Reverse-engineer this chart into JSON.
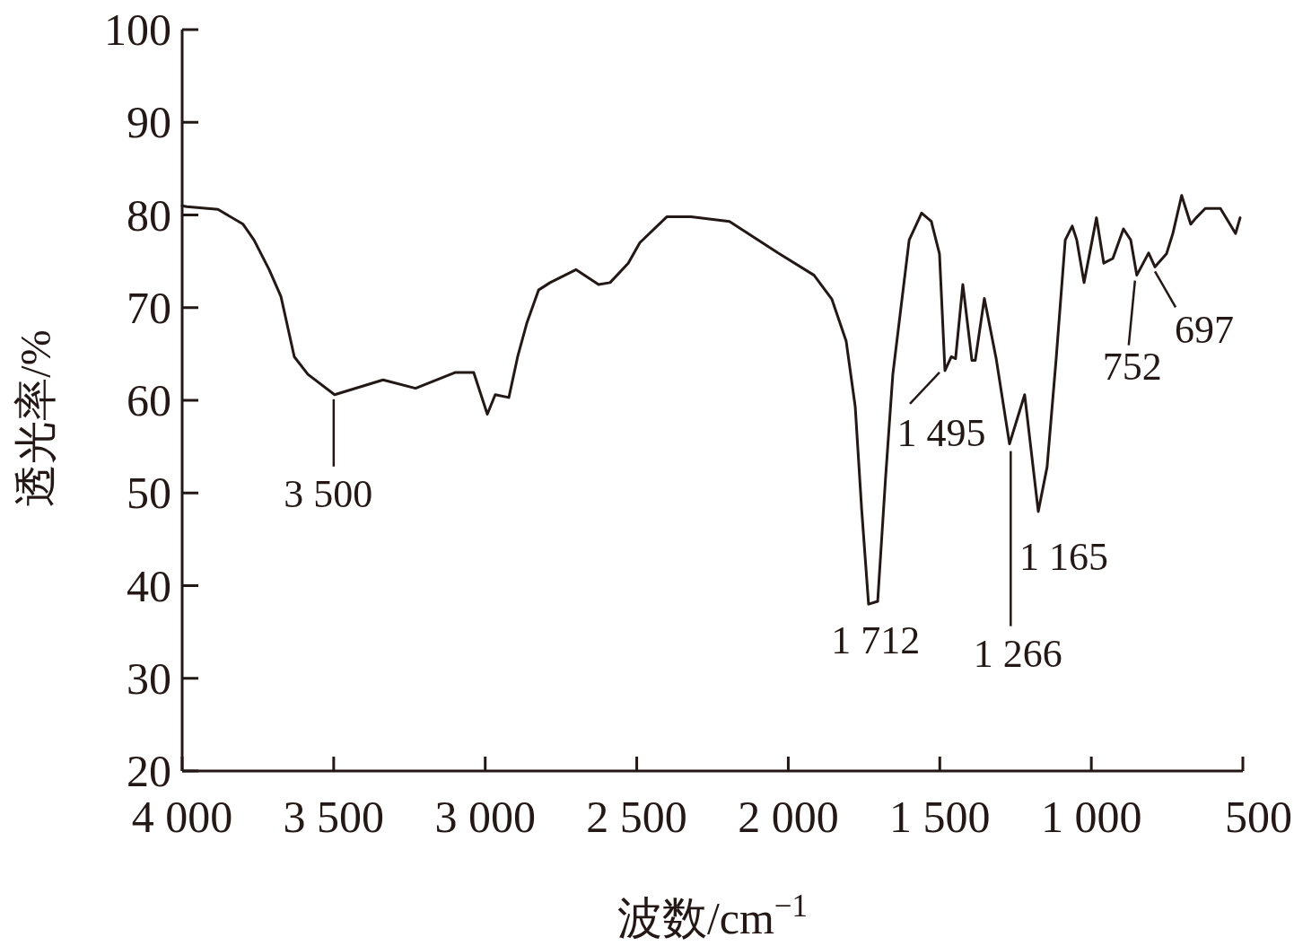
{
  "chart_data": {
    "type": "line",
    "xlabel": "波数/cm$^{−1}$",
    "ylabel": "透光率/%",
    "x": [
      4000,
      3985,
      3882,
      3799,
      3763,
      3713,
      3674,
      3630,
      3585,
      3497,
      3337,
      3230,
      3100,
      3038,
      2993,
      2967,
      2922,
      2893,
      2863,
      2824,
      2786,
      2700,
      2626,
      2588,
      2528,
      2490,
      2401,
      2321,
      2194,
      2034,
      1915,
      1856,
      1809,
      1779,
      1758,
      1735,
      1705,
      1679,
      1655,
      1601,
      1560,
      1528,
      1501,
      1483,
      1462,
      1448,
      1424,
      1394,
      1383,
      1353,
      1314,
      1270,
      1220,
      1175,
      1146,
      1116,
      1086,
      1063,
      1048,
      1024,
      997,
      983,
      959,
      929,
      894,
      870,
      850,
      811,
      790,
      752,
      731,
      702,
      672,
      654,
      624,
      574,
      524,
      509
    ],
    "series": [
      {
        "color": "#231815",
        "values": [
          81.0,
          80.9,
          80.6,
          79.0,
          77.3,
          74.1,
          71.2,
          64.7,
          62.8,
          60.6,
          62.2,
          61.3,
          63.0,
          63.0,
          58.5,
          60.6,
          60.3,
          64.7,
          68.3,
          71.9,
          72.7,
          74.1,
          72.5,
          72.7,
          74.8,
          77.0,
          79.8,
          79.8,
          79.3,
          75.9,
          73.5,
          70.9,
          66.4,
          59.3,
          48.3,
          38.0,
          38.3,
          51.6,
          62.8,
          77.3,
          80.2,
          79.3,
          75.8,
          63.2,
          64.7,
          64.5,
          72.5,
          64.3,
          64.3,
          71.0,
          64.5,
          55.3,
          60.6,
          48.0,
          52.8,
          64.5,
          77.3,
          78.8,
          77.3,
          72.7,
          77.3,
          79.7,
          74.8,
          75.3,
          78.5,
          77.3,
          73.5,
          75.9,
          74.4,
          75.8,
          78.0,
          82.1,
          79.0,
          79.7,
          80.7,
          80.7,
          78.0,
          79.7
        ]
      }
    ],
    "xlim": [
      4000,
      500
    ],
    "xticks": [
      {
        "value": 4000,
        "label": "4 000"
      },
      {
        "value": 3500,
        "label": "3 500"
      },
      {
        "value": 3000,
        "label": "3 000"
      },
      {
        "value": 2500,
        "label": "2 500"
      },
      {
        "value": 2000,
        "label": "2 000"
      },
      {
        "value": 1500,
        "label": "1 500"
      },
      {
        "value": 1000,
        "label": "1 000"
      },
      500
    ],
    "ylim": [
      20,
      100
    ],
    "yticks": [
      20,
      30,
      40,
      50,
      60,
      70,
      80,
      90,
      100
    ],
    "grid": false,
    "marker": "none",
    "line_style": "solid",
    "annotations": [
      {
        "text": "3 500",
        "x": 3500,
        "y": 60.6
      },
      {
        "text": "1 712",
        "x": 1712,
        "y": 38.0
      },
      {
        "text": "1 495",
        "x": 1495,
        "y": 63.5
      },
      {
        "text": "1 266",
        "x": 1266,
        "y": 55.0
      },
      {
        "text": "1 165",
        "x": 1165,
        "y": 48.0
      },
      {
        "text": "752",
        "x": 850,
        "y": 73.5
      },
      {
        "text": "697",
        "x": 790,
        "y": 74.4
      }
    ]
  }
}
